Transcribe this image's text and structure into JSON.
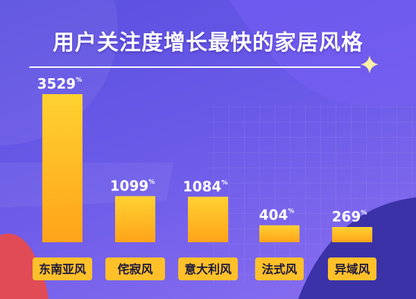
{
  "colors": {
    "bar_top": "#ffd230",
    "bar_bottom": "#ffa31a",
    "label_bg": "#ffc02a",
    "value_text": "#ffffff",
    "title_text": "#ffffff"
  },
  "chart_data": {
    "type": "bar",
    "title": "用户关注度增长最快的家居风格",
    "categories": [
      "东南亚风",
      "侘寂风",
      "意大利风",
      "法式风",
      "异域风"
    ],
    "values": [
      3529,
      1099,
      1084,
      404,
      269
    ],
    "value_unit": "%",
    "xlabel": "",
    "ylabel": "",
    "grid": false,
    "legend": false
  }
}
